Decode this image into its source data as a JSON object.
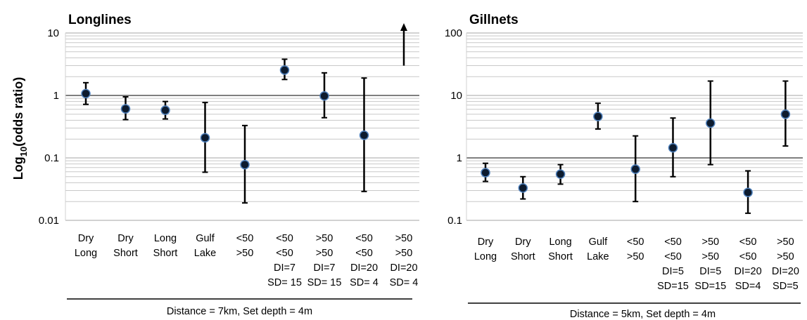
{
  "y_axis_label": {
    "prefix": "Log",
    "subscript": "10",
    "suffix": "(odds ratio)"
  },
  "chart_data": [
    {
      "type": "scatter",
      "title": "Longlines",
      "xlabel": "",
      "ylabel": "Log10(odds ratio)",
      "y_scale": "log",
      "ylim": [
        0.01,
        10
      ],
      "yticks": [
        "10",
        "1",
        "0.1",
        "0.01"
      ],
      "reference_line": 1,
      "grid": "minor log gridlines",
      "footnote": "Distance = 7km, Set depth = 4m",
      "categories": [
        [
          "Dry",
          "Long"
        ],
        [
          "Dry",
          "Short"
        ],
        [
          "Long",
          "Short"
        ],
        [
          "Gulf",
          "Lake"
        ],
        [
          "<50",
          ">50"
        ],
        [
          "<50",
          "<50",
          "DI=7",
          "SD= 15"
        ],
        [
          ">50",
          ">50",
          "DI=7",
          "SD= 15"
        ],
        [
          "<50",
          "<50",
          "DI=20",
          "SD= 4"
        ],
        [
          ">50",
          ">50",
          "DI=20",
          "SD= 4"
        ]
      ],
      "points": [
        {
          "estimate": 1.07,
          "lower": 0.72,
          "upper": 1.6
        },
        {
          "estimate": 0.61,
          "lower": 0.41,
          "upper": 0.95
        },
        {
          "estimate": 0.58,
          "lower": 0.42,
          "upper": 0.8
        },
        {
          "estimate": 0.21,
          "lower": 0.059,
          "upper": 0.77
        },
        {
          "estimate": 0.078,
          "lower": 0.019,
          "upper": 0.33
        },
        {
          "estimate": 2.55,
          "lower": 1.8,
          "upper": 3.8
        },
        {
          "estimate": 0.98,
          "lower": 0.44,
          "upper": 2.3
        },
        {
          "estimate": 0.23,
          "lower": 0.029,
          "upper": 1.9
        },
        {
          "estimate": null,
          "lower": 3.0,
          "upper": 10,
          "note": "arrow: exceeds axis"
        }
      ]
    },
    {
      "type": "scatter",
      "title": "Gillnets",
      "xlabel": "",
      "ylabel": "",
      "y_scale": "log",
      "ylim": [
        0.1,
        100
      ],
      "yticks": [
        "100",
        "10",
        "1",
        "0.1"
      ],
      "reference_line": 1,
      "grid": "minor log gridlines",
      "footnote": "Distance = 5km, Set depth = 4m",
      "categories": [
        [
          "Dry",
          "Long"
        ],
        [
          "Dry",
          "Short"
        ],
        [
          "Long",
          "Short"
        ],
        [
          "Gulf",
          "Lake"
        ],
        [
          "<50",
          ">50"
        ],
        [
          "<50",
          "<50",
          "DI=5",
          "SD=15"
        ],
        [
          ">50",
          ">50",
          "DI=5",
          "SD=15"
        ],
        [
          "<50",
          "<50",
          "DI=20",
          "SD=4"
        ],
        [
          ">50",
          ">50",
          "DI=20",
          "SD=5"
        ]
      ],
      "points": [
        {
          "estimate": 0.58,
          "lower": 0.42,
          "upper": 0.82
        },
        {
          "estimate": 0.33,
          "lower": 0.22,
          "upper": 0.5
        },
        {
          "estimate": 0.55,
          "lower": 0.38,
          "upper": 0.78
        },
        {
          "estimate": 4.6,
          "lower": 2.9,
          "upper": 7.5
        },
        {
          "estimate": 0.66,
          "lower": 0.2,
          "upper": 2.25
        },
        {
          "estimate": 1.45,
          "lower": 0.5,
          "upper": 4.35
        },
        {
          "estimate": 3.6,
          "lower": 0.78,
          "upper": 17
        },
        {
          "estimate": 0.28,
          "lower": 0.13,
          "upper": 0.62
        },
        {
          "estimate": 5.0,
          "lower": 1.55,
          "upper": 17
        }
      ]
    }
  ]
}
